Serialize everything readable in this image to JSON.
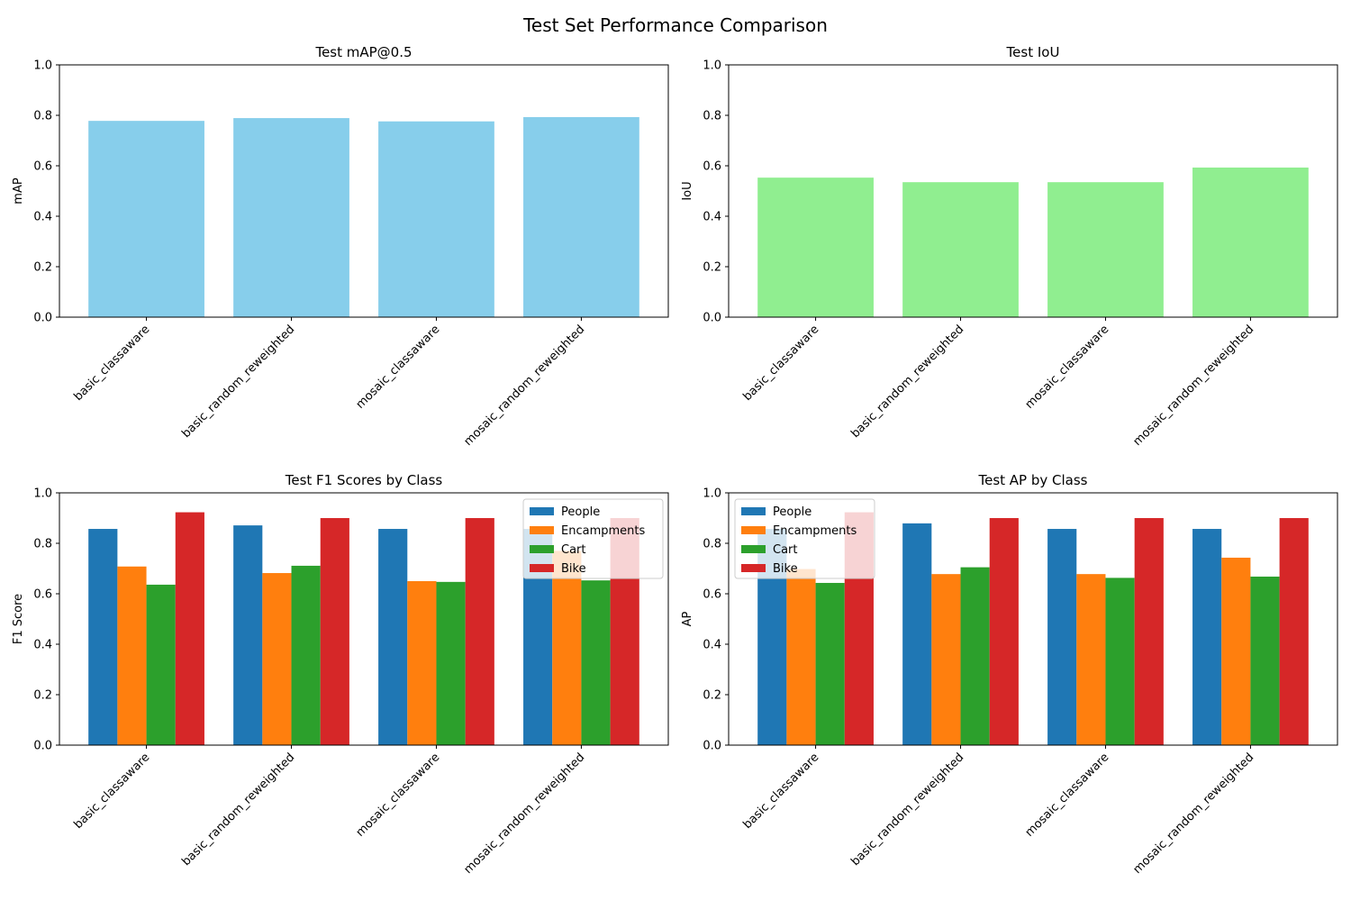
{
  "suptitle": "Test Set Performance Comparison",
  "chart_data": [
    {
      "type": "bar",
      "title": "Test mAP@0.5",
      "xlabel": "",
      "ylabel": "mAP",
      "ylim": [
        0,
        1
      ],
      "yticks": [
        "0.0",
        "0.2",
        "0.4",
        "0.6",
        "0.8",
        "1.0"
      ],
      "categories": [
        "basic_classaware",
        "basic_random_reweighted",
        "mosaic_classaware",
        "mosaic_random_reweighted"
      ],
      "values": [
        0.778,
        0.789,
        0.776,
        0.793
      ],
      "color": "#87ceeb",
      "grid": false
    },
    {
      "type": "bar",
      "title": "Test IoU",
      "xlabel": "",
      "ylabel": "IoU",
      "ylim": [
        0,
        1
      ],
      "yticks": [
        "0.0",
        "0.2",
        "0.4",
        "0.6",
        "0.8",
        "1.0"
      ],
      "categories": [
        "basic_classaware",
        "basic_random_reweighted",
        "mosaic_classaware",
        "mosaic_random_reweighted"
      ],
      "values": [
        0.553,
        0.535,
        0.535,
        0.593
      ],
      "color": "#90ee90",
      "grid": false
    },
    {
      "type": "bar",
      "title": "Test F1 Scores by Class",
      "xlabel": "",
      "ylabel": "F1 Score",
      "ylim": [
        0,
        1
      ],
      "yticks": [
        "0.0",
        "0.2",
        "0.4",
        "0.6",
        "0.8",
        "1.0"
      ],
      "categories": [
        "basic_classaware",
        "basic_random_reweighted",
        "mosaic_classaware",
        "mosaic_random_reweighted"
      ],
      "legend_position": "upper-right",
      "grid": false,
      "series": [
        {
          "name": "People",
          "color": "#1f77b4",
          "values": [
            0.857,
            0.871,
            0.857,
            0.857
          ]
        },
        {
          "name": "Encampments",
          "color": "#ff7f0e",
          "values": [
            0.708,
            0.682,
            0.65,
            0.77
          ]
        },
        {
          "name": "Cart",
          "color": "#2ca02c",
          "values": [
            0.636,
            0.711,
            0.647,
            0.653
          ]
        },
        {
          "name": "Bike",
          "color": "#d62728",
          "values": [
            0.923,
            0.9,
            0.9,
            0.9
          ]
        }
      ]
    },
    {
      "type": "bar",
      "title": "Test AP by Class",
      "xlabel": "",
      "ylabel": "AP",
      "ylim": [
        0,
        1
      ],
      "yticks": [
        "0.0",
        "0.2",
        "0.4",
        "0.6",
        "0.8",
        "1.0"
      ],
      "categories": [
        "basic_classaware",
        "basic_random_reweighted",
        "mosaic_classaware",
        "mosaic_random_reweighted"
      ],
      "legend_position": "upper-left",
      "grid": false,
      "series": [
        {
          "name": "People",
          "color": "#1f77b4",
          "values": [
            0.857,
            0.879,
            0.857,
            0.857
          ]
        },
        {
          "name": "Encampments",
          "color": "#ff7f0e",
          "values": [
            0.698,
            0.678,
            0.678,
            0.743
          ]
        },
        {
          "name": "Cart",
          "color": "#2ca02c",
          "values": [
            0.643,
            0.705,
            0.663,
            0.668
          ]
        },
        {
          "name": "Bike",
          "color": "#d62728",
          "values": [
            0.923,
            0.9,
            0.9,
            0.9
          ]
        }
      ]
    }
  ]
}
